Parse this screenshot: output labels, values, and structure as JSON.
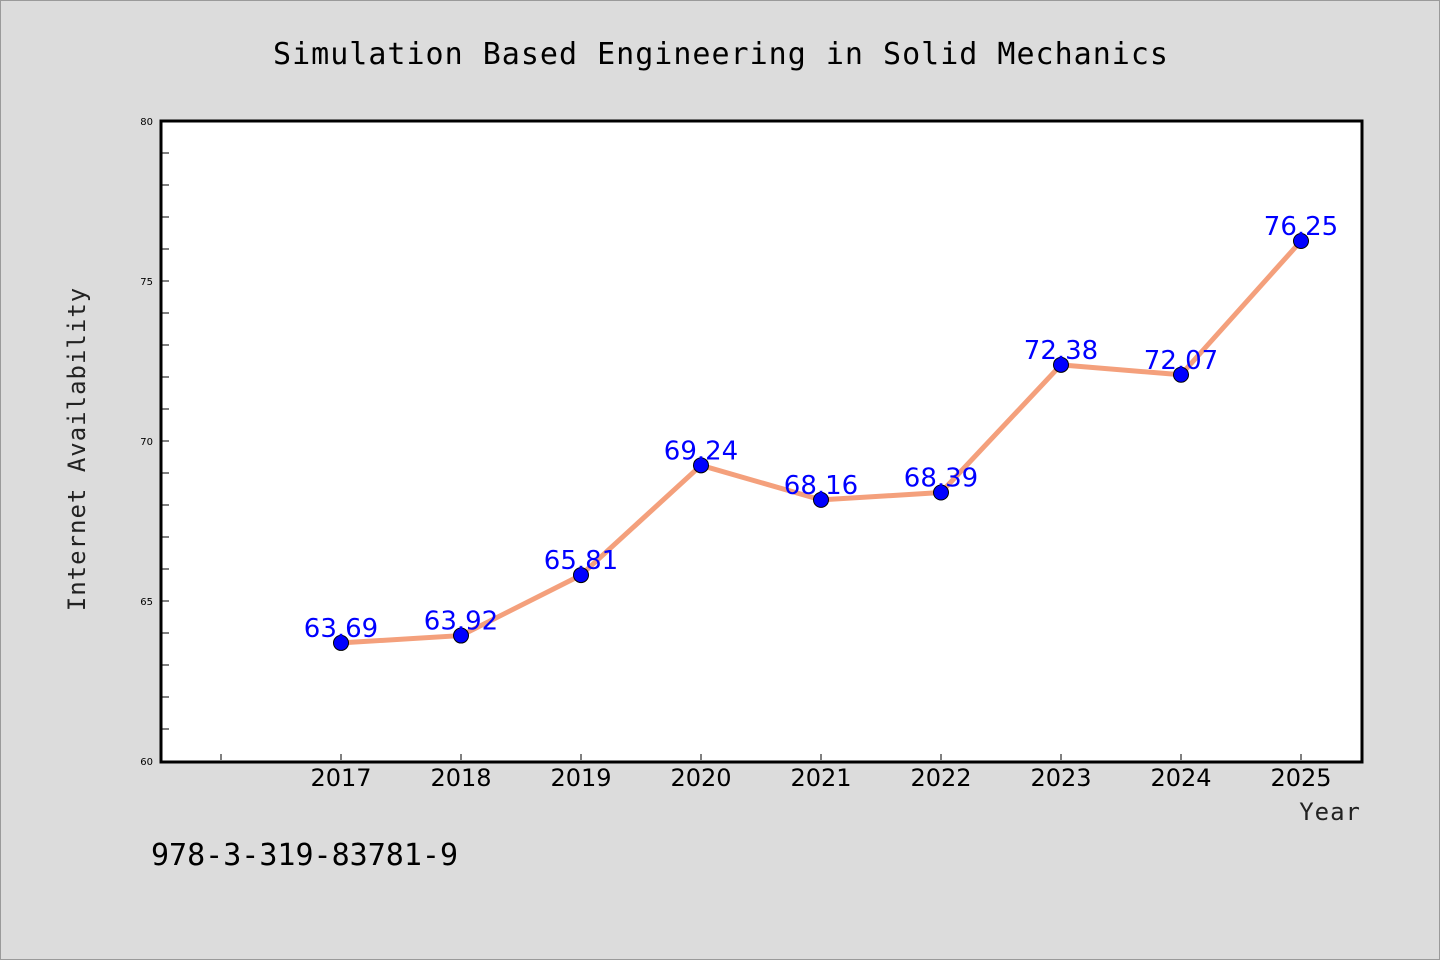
{
  "chart_data": {
    "type": "line",
    "title": "Simulation Based Engineering in Solid Mechanics",
    "xlabel": "Year",
    "ylabel": "Internet Availability",
    "categories": [
      "2017",
      "2018",
      "2019",
      "2020",
      "2021",
      "2022",
      "2023",
      "2024",
      "2025"
    ],
    "series": [
      {
        "values": [
          63.69,
          63.92,
          65.81,
          69.24,
          68.16,
          68.39,
          72.38,
          72.07,
          76.25
        ],
        "data_labels": [
          "63.69",
          "63.92",
          "65.81",
          "69.24",
          "68.16",
          "68.39",
          "72.38",
          "72.07",
          "76.25"
        ]
      }
    ],
    "ylim": [
      60,
      80
    ],
    "yticks": [
      "60",
      "65",
      "70",
      "75",
      "80"
    ],
    "grid": false,
    "legend": "none",
    "colors": {
      "line": "#f4a07c",
      "marker": "#0000ff",
      "data_label": "#0000ff",
      "background": "#dcdcdc",
      "plot_area": "#ffffff"
    },
    "footnote": "978-3-319-83781-9"
  }
}
